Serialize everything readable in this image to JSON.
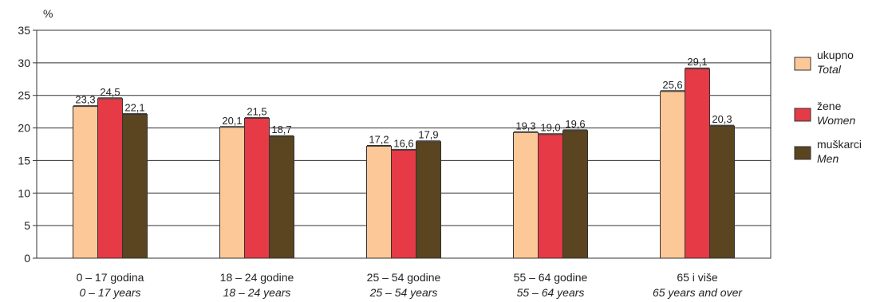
{
  "chart_data": {
    "type": "bar",
    "ylabel": "%",
    "ylim": [
      0,
      35
    ],
    "yticks": [
      "0",
      "5",
      "10",
      "15",
      "20",
      "25",
      "30",
      "35"
    ],
    "grid": true,
    "legend_position": "right",
    "categories": [
      {
        "label": "0 – 17 godina",
        "label_en": "0 – 17 years"
      },
      {
        "label": "18 – 24 godine",
        "label_en": "18 – 24 years"
      },
      {
        "label": "25 – 54 godine",
        "label_en": "25 – 54 years"
      },
      {
        "label": "55 – 64 godine",
        "label_en": "55 – 64 years"
      },
      {
        "label": "65 i više",
        "label_en": "65 years and over"
      }
    ],
    "series": [
      {
        "name": "ukupno",
        "name_en": "Total",
        "color": "#fcc898",
        "values": [
          23.3,
          20.1,
          17.2,
          19.3,
          25.6
        ],
        "value_labels": [
          "23,3",
          "20,1",
          "17,2",
          "19,3",
          "25,6"
        ]
      },
      {
        "name": "žene",
        "name_en": "Women",
        "color": "#e63a46",
        "values": [
          24.5,
          21.5,
          16.6,
          19.0,
          29.1
        ],
        "value_labels": [
          "24,5",
          "21,5",
          "16,6",
          "19,0",
          "29,1"
        ]
      },
      {
        "name": "muškarci",
        "name_en": "Men",
        "color": "#5a4520",
        "values": [
          22.1,
          18.7,
          17.9,
          19.6,
          20.3
        ],
        "value_labels": [
          "22,1",
          "18,7",
          "17,9",
          "19,6",
          "20,3"
        ]
      }
    ]
  }
}
